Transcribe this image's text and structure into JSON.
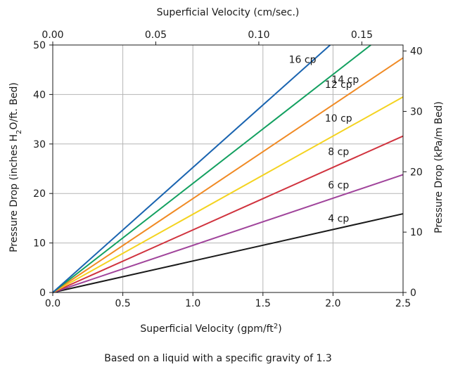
{
  "chart_data": {
    "type": "line",
    "x": [
      0,
      2.5
    ],
    "xlabel_main": "Superficial Velocity (gpm/ft",
    "xlabel_sup": "2",
    "xlabel_close": ")",
    "xlabel_top": "Superficial Velocity (cm/sec.)",
    "ylabel_main_pre": "Pressure Drop (inches H",
    "ylabel_main_sub": "2",
    "ylabel_main_post": "O/ft. Bed)",
    "ylabel_right": "Pressure Drop (kPa/m Bed)",
    "xlim": [
      0,
      2.5
    ],
    "ylim": [
      0,
      50
    ],
    "xlim_top": [
      0,
      0.17
    ],
    "ylim_right": [
      0,
      41
    ],
    "x_ticks": [
      "0.0",
      "0.5",
      "1.0",
      "1.5",
      "2.0",
      "2.5"
    ],
    "y_ticks": [
      "0",
      "10",
      "20",
      "30",
      "40",
      "50"
    ],
    "x_top_ticks": [
      "0.00",
      "0.05",
      "0.10",
      "0.15"
    ],
    "y_right_ticks": [
      "0",
      "10",
      "20",
      "30",
      "40"
    ],
    "grid": true,
    "caption": "Based on a liquid with a specific gravity of 1.3",
    "series": [
      {
        "name": "4 cp",
        "color": "#1a1a1a",
        "x": [
          0,
          2.5
        ],
        "y": [
          0,
          15.9
        ]
      },
      {
        "name": "6 cp",
        "color": "#a0449b",
        "x": [
          0,
          2.5
        ],
        "y": [
          0,
          23.8
        ]
      },
      {
        "name": "8 cp",
        "color": "#d0333e",
        "x": [
          0,
          2.5
        ],
        "y": [
          0,
          31.6
        ]
      },
      {
        "name": "10 cp",
        "color": "#f4d320",
        "x": [
          0,
          2.5
        ],
        "y": [
          0,
          39.5
        ]
      },
      {
        "name": "12 cp",
        "color": "#f08a24",
        "x": [
          0,
          2.5
        ],
        "y": [
          0,
          47.4
        ]
      },
      {
        "name": "14 cp",
        "color": "#13a060",
        "x": [
          0,
          2.27
        ],
        "y": [
          0,
          50
        ]
      },
      {
        "name": "16 cp",
        "color": "#1a64b0",
        "x": [
          0,
          1.98
        ],
        "y": [
          0,
          50
        ]
      }
    ]
  }
}
